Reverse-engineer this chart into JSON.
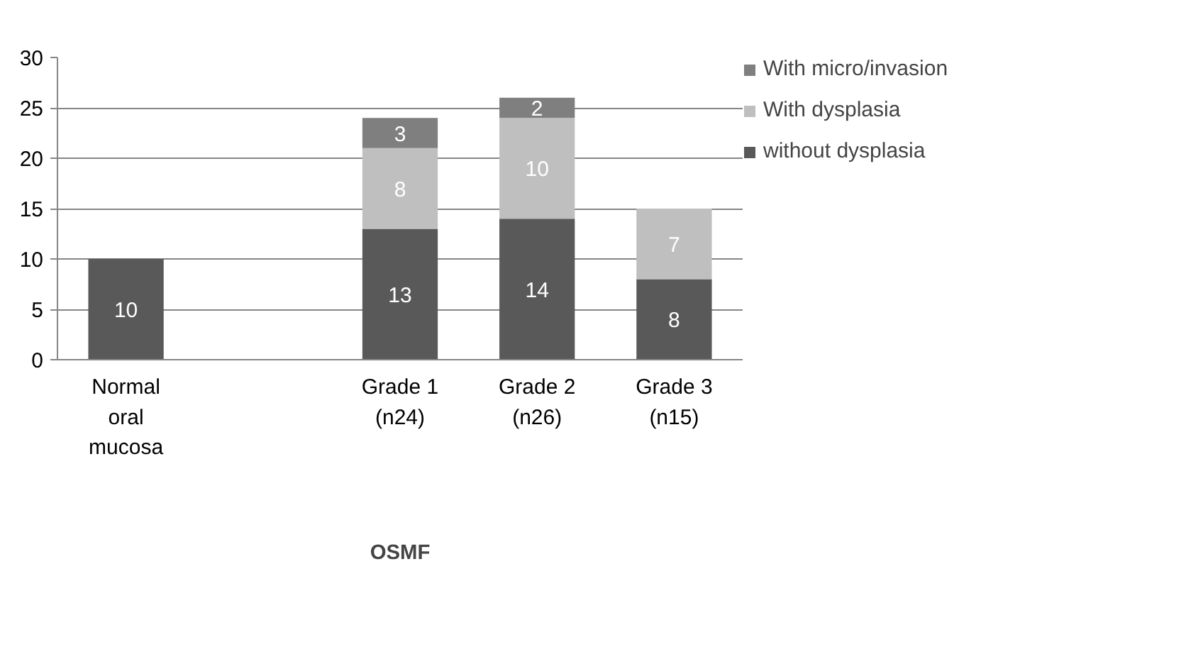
{
  "chart_data": {
    "type": "bar",
    "stacked": true,
    "xlabel": "OSMF",
    "categories": [
      "Normal oral mucosa",
      null,
      "Grade 1 (n24)",
      "Grade 2 (n26)",
      "Grade 3 (n15)"
    ],
    "series": [
      {
        "name": "without dysplasia",
        "color": "#595959",
        "values": [
          10,
          null,
          13,
          14,
          8
        ]
      },
      {
        "name": "With dysplasia",
        "color": "#bfbfbf",
        "values": [
          null,
          null,
          8,
          10,
          7
        ]
      },
      {
        "name": "With micro/invasion",
        "color": "#7f7f7f",
        "values": [
          null,
          null,
          3,
          2,
          null
        ]
      }
    ],
    "ylim": [
      0,
      30
    ],
    "yticks": [
      0,
      5,
      10,
      15,
      20,
      25,
      30
    ],
    "grid": "y",
    "legend": "right",
    "data_labels": true
  }
}
